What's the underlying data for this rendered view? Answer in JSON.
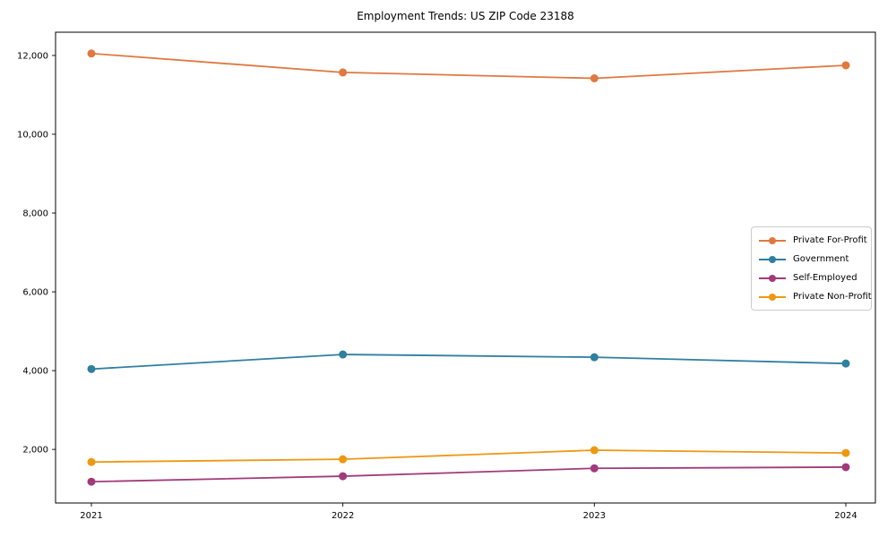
{
  "figure": {
    "title": "Employment Trends: US ZIP Code 23188"
  },
  "chart_data": {
    "type": "line",
    "title": "Employment Trends: US ZIP Code 23188",
    "xlabel": "",
    "ylabel": "",
    "categories": [
      "2021",
      "2022",
      "2023",
      "2024"
    ],
    "series": [
      {
        "name": "Private For-Profit",
        "color": "#E07840",
        "values": [
          12050,
          11570,
          11420,
          11750
        ]
      },
      {
        "name": "Government",
        "color": "#2F7F9F",
        "values": [
          4040,
          4410,
          4340,
          4180
        ]
      },
      {
        "name": "Self-Employed",
        "color": "#A13A7A",
        "values": [
          1180,
          1320,
          1520,
          1550
        ]
      },
      {
        "name": "Private Non-Profit",
        "color": "#EE9812",
        "values": [
          1680,
          1750,
          1980,
          1910
        ]
      }
    ],
    "ylim": [
      640,
      12590
    ],
    "yticks": [
      2000,
      4000,
      6000,
      8000,
      10000,
      12000
    ],
    "grid": false,
    "legend_position": "center right",
    "axis_color": "#000000",
    "tick_label_color": "#000000"
  }
}
